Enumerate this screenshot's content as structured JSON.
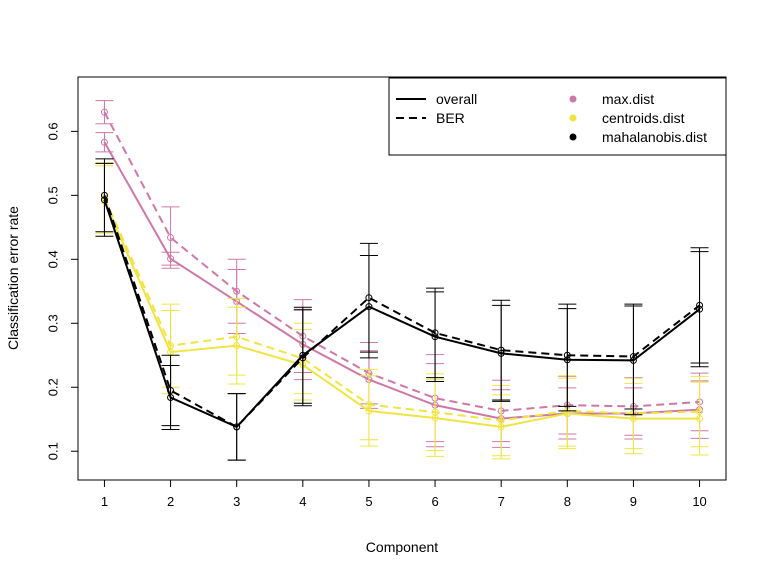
{
  "chart_data": {
    "type": "line",
    "xlabel": "Component",
    "ylabel": "Classification error rate",
    "x": [
      1,
      2,
      3,
      4,
      5,
      6,
      7,
      8,
      9,
      10
    ],
    "xlim": [
      0.6,
      10.4
    ],
    "ylim": [
      0.055,
      0.685
    ],
    "yticks": [
      0.1,
      0.2,
      0.3,
      0.4,
      0.5,
      0.6
    ],
    "grid": false,
    "legend": {
      "placement": "top-right",
      "linetypes": [
        {
          "label": "overall",
          "dash": "solid"
        },
        {
          "label": "BER",
          "dash": "dashed"
        }
      ],
      "distances": [
        {
          "label": "max.dist",
          "color": "#CC79A7"
        },
        {
          "label": "centroids.dist",
          "color": "#F0E442"
        },
        {
          "label": "mahalanobis.dist",
          "color": "#000000"
        }
      ]
    },
    "series": [
      {
        "distance": "max.dist",
        "measure": "overall",
        "color": "#CC79A7",
        "dash": "solid",
        "values": [
          0.583,
          0.401,
          0.334,
          0.267,
          0.212,
          0.172,
          0.151,
          0.159,
          0.159,
          0.165
        ],
        "error": [
          0.015,
          0.01,
          0.05,
          0.055,
          0.045,
          0.065,
          0.045,
          0.04,
          0.04,
          0.045
        ]
      },
      {
        "distance": "max.dist",
        "measure": "BER",
        "color": "#CC79A7",
        "dash": "dashed",
        "values": [
          0.63,
          0.434,
          0.35,
          0.28,
          0.222,
          0.183,
          0.163,
          0.172,
          0.17,
          0.177
        ],
        "error": [
          0.018,
          0.048,
          0.05,
          0.057,
          0.048,
          0.068,
          0.048,
          0.045,
          0.045,
          0.045
        ]
      },
      {
        "distance": "centroids.dist",
        "measure": "overall",
        "color": "#F0E442",
        "dash": "solid",
        "values": [
          0.491,
          0.255,
          0.265,
          0.235,
          0.163,
          0.152,
          0.138,
          0.159,
          0.151,
          0.151
        ],
        "error": [
          0.055,
          0.065,
          0.06,
          0.055,
          0.055,
          0.06,
          0.05,
          0.055,
          0.055,
          0.057
        ]
      },
      {
        "distance": "centroids.dist",
        "measure": "BER",
        "color": "#F0E442",
        "dash": "dashed",
        "values": [
          0.496,
          0.265,
          0.279,
          0.245,
          0.173,
          0.161,
          0.148,
          0.163,
          0.159,
          0.162
        ],
        "error": [
          0.055,
          0.065,
          0.06,
          0.055,
          0.055,
          0.06,
          0.055,
          0.055,
          0.055,
          0.055
        ]
      },
      {
        "distance": "mahalanobis.dist",
        "measure": "overall",
        "color": "#000000",
        "dash": "solid",
        "values": [
          0.493,
          0.184,
          0.138,
          0.25,
          0.326,
          0.279,
          0.253,
          0.243,
          0.242,
          0.322
        ],
        "error": [
          0.057,
          0.05,
          0.052,
          0.075,
          0.08,
          0.07,
          0.075,
          0.08,
          0.085,
          0.09
        ]
      },
      {
        "distance": "mahalanobis.dist",
        "measure": "BER",
        "color": "#000000",
        "dash": "dashed",
        "values": [
          0.5,
          0.195,
          0.138,
          0.246,
          0.34,
          0.285,
          0.258,
          0.25,
          0.248,
          0.328
        ],
        "error": [
          0.057,
          0.055,
          0.052,
          0.075,
          0.085,
          0.07,
          0.078,
          0.08,
          0.082,
          0.09
        ]
      }
    ]
  }
}
